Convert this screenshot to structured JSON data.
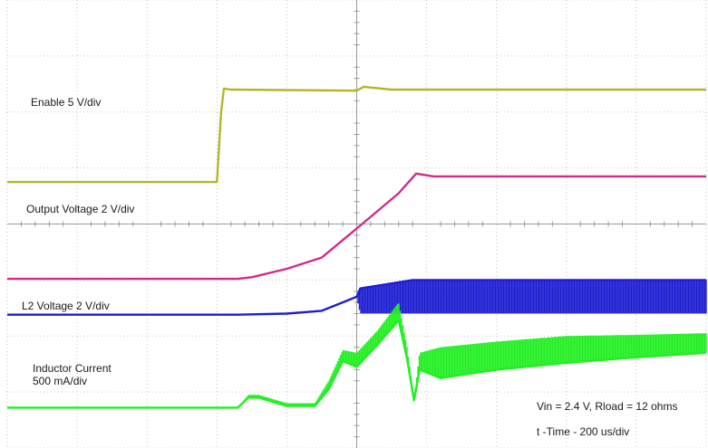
{
  "chart_data": {
    "type": "line",
    "grid": true,
    "grid_divisions": {
      "horizontal": 10,
      "vertical": 8
    },
    "x_unit": "div",
    "y_unit": "div",
    "xlim": [
      0,
      10
    ],
    "ylim": [
      0,
      8
    ],
    "series": [
      {
        "name": "Enable 5 V/div",
        "color": "#b5b52a",
        "x": [
          0,
          3.0,
          3.06,
          3.1,
          3.2,
          5.0,
          5.1,
          5.5,
          10
        ],
        "y": [
          4.75,
          4.75,
          6.0,
          6.42,
          6.4,
          6.38,
          6.45,
          6.4,
          6.4
        ]
      },
      {
        "name": "Output Voltage 2 V/div",
        "color": "#d42a8a",
        "x": [
          0,
          3.3,
          3.5,
          4.0,
          4.5,
          5.0,
          5.6,
          5.85,
          6.1,
          10
        ],
        "y": [
          3.02,
          3.02,
          3.05,
          3.2,
          3.4,
          3.92,
          4.55,
          4.9,
          4.85,
          4.85
        ]
      },
      {
        "name": "L2 Voltage  2 V/div",
        "color": "#1e1ed2",
        "x": [
          0,
          3.3,
          4.0,
          4.5,
          4.8,
          5.0,
          5.05,
          5.8,
          10
        ],
        "y": [
          2.38,
          2.38,
          2.4,
          2.45,
          2.6,
          2.7,
          2.85,
          3.0,
          3.0
        ],
        "envelope_min": [
          2.38,
          2.38,
          2.4,
          2.45,
          2.6,
          2.7,
          2.4,
          2.4,
          2.4
        ]
      },
      {
        "name": "Inductor Current 500 mA/div",
        "color": "#22ee22",
        "x": [
          0,
          3.3,
          3.45,
          3.6,
          4.0,
          4.4,
          4.6,
          4.8,
          5.0,
          5.3,
          5.6,
          5.72,
          5.82,
          5.9,
          6.2,
          7.0,
          8.0,
          9.0,
          10
        ],
        "y": [
          0.72,
          0.72,
          0.9,
          0.9,
          0.75,
          0.75,
          1.05,
          1.55,
          1.45,
          1.85,
          2.28,
          1.6,
          0.85,
          1.4,
          1.25,
          1.4,
          1.52,
          1.62,
          1.7
        ],
        "envelope_max": [
          0.72,
          0.72,
          0.95,
          0.95,
          0.8,
          0.8,
          1.2,
          1.75,
          1.7,
          2.1,
          2.6,
          1.8,
          0.9,
          1.7,
          1.8,
          1.9,
          2.0,
          2.02,
          2.05
        ]
      }
    ],
    "annotations": [
      "Enable 5 V/div",
      "Output Voltage 2 V/div",
      "L2 Voltage  2 V/div",
      "Inductor Current",
      "500 mA/div",
      "Vin = 2.4 V, Rload = 12 ohms",
      "t -Time - 200 us/div"
    ]
  }
}
